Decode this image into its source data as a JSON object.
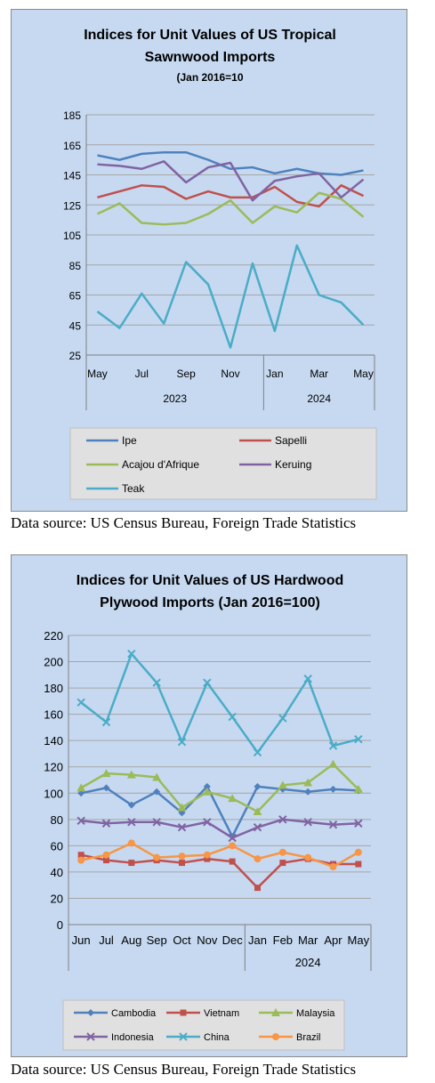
{
  "chart_data": [
    {
      "type": "line",
      "title": "Indices for Unit Values of US Tropical Sawnwood Imports",
      "subtitle": "(Jan 2016=10",
      "ylim": [
        25,
        185
      ],
      "yticks": [
        25,
        45,
        65,
        85,
        105,
        125,
        145,
        165,
        185
      ],
      "x_tick_labels": [
        "May",
        "",
        "Jul",
        "",
        "Sep",
        "",
        "Nov",
        "",
        "Jan",
        "",
        "Mar",
        "",
        "May"
      ],
      "year_groups": [
        {
          "label": "2023",
          "from": 0,
          "to": 7
        },
        {
          "label": "2024",
          "from": 8,
          "to": 12
        }
      ],
      "grid": true,
      "legend_position": "bottom",
      "series": [
        {
          "name": "Ipe",
          "color": "#4f81bd",
          "marker": "none",
          "values": [
            158,
            155,
            159,
            160,
            160,
            155,
            149,
            150,
            146,
            149,
            146,
            145,
            148
          ]
        },
        {
          "name": "Sapelli",
          "color": "#c0504d",
          "marker": "none",
          "values": [
            130,
            134,
            138,
            137,
            129,
            134,
            130,
            130,
            137,
            127,
            124,
            138,
            131
          ]
        },
        {
          "name": "Acajou d'Afrique",
          "color": "#9bbb59",
          "marker": "none",
          "values": [
            119,
            126,
            113,
            112,
            113,
            119,
            128,
            113,
            124,
            120,
            133,
            129,
            117
          ]
        },
        {
          "name": "Keruing",
          "color": "#8064a2",
          "marker": "none",
          "values": [
            152,
            151,
            149,
            154,
            140,
            150,
            153,
            128,
            141,
            144,
            146,
            130,
            142
          ]
        },
        {
          "name": "Teak",
          "color": "#4bacc6",
          "marker": "none",
          "values": [
            54,
            43,
            66,
            46,
            87,
            72,
            30,
            86,
            41,
            98,
            65,
            60,
            45
          ]
        }
      ]
    },
    {
      "type": "line",
      "title": "Indices for Unit Values of US Hardwood Plywood Imports (Jan 2016=100)",
      "ylim": [
        0,
        220
      ],
      "yticks": [
        0,
        20,
        40,
        60,
        80,
        100,
        120,
        140,
        160,
        180,
        200,
        220
      ],
      "x_tick_labels": [
        "Jun",
        "Jul",
        "Aug",
        "Sep",
        "Oct",
        "Nov",
        "Dec",
        "Jan",
        "Feb",
        "Mar",
        "Apr",
        "May"
      ],
      "year_groups": [
        {
          "label": "",
          "from": 0,
          "to": 6
        },
        {
          "label": "2024",
          "from": 7,
          "to": 11
        }
      ],
      "grid": true,
      "legend_position": "bottom",
      "series": [
        {
          "name": "Cambodia",
          "color": "#4f81bd",
          "marker": "diamond",
          "values": [
            100,
            104,
            91,
            101,
            85,
            105,
            67,
            105,
            103,
            101,
            103,
            102
          ]
        },
        {
          "name": "Vietnam",
          "color": "#c0504d",
          "marker": "square",
          "values": [
            53,
            49,
            47,
            49,
            47,
            50,
            48,
            28,
            47,
            50,
            46,
            46
          ]
        },
        {
          "name": "Malaysia",
          "color": "#9bbb59",
          "marker": "triangle",
          "values": [
            104,
            115,
            114,
            112,
            89,
            101,
            96,
            86,
            106,
            108,
            122,
            103
          ]
        },
        {
          "name": "Indonesia",
          "color": "#8064a2",
          "marker": "x",
          "values": [
            79,
            77,
            78,
            78,
            74,
            78,
            66,
            74,
            80,
            78,
            76,
            77
          ]
        },
        {
          "name": "China",
          "color": "#4bacc6",
          "marker": "x",
          "values": [
            169,
            154,
            206,
            184,
            139,
            184,
            158,
            131,
            157,
            187,
            136,
            141
          ]
        },
        {
          "name": "Brazil",
          "color": "#f79646",
          "marker": "circle",
          "values": [
            49,
            53,
            62,
            51,
            52,
            53,
            60,
            50,
            55,
            51,
            44,
            55
          ]
        }
      ]
    }
  ],
  "sources": [
    "Data source: US Census Bureau, Foreign Trade Statistics",
    "Data source: US Census Bureau, Foreign Trade Statistics"
  ]
}
